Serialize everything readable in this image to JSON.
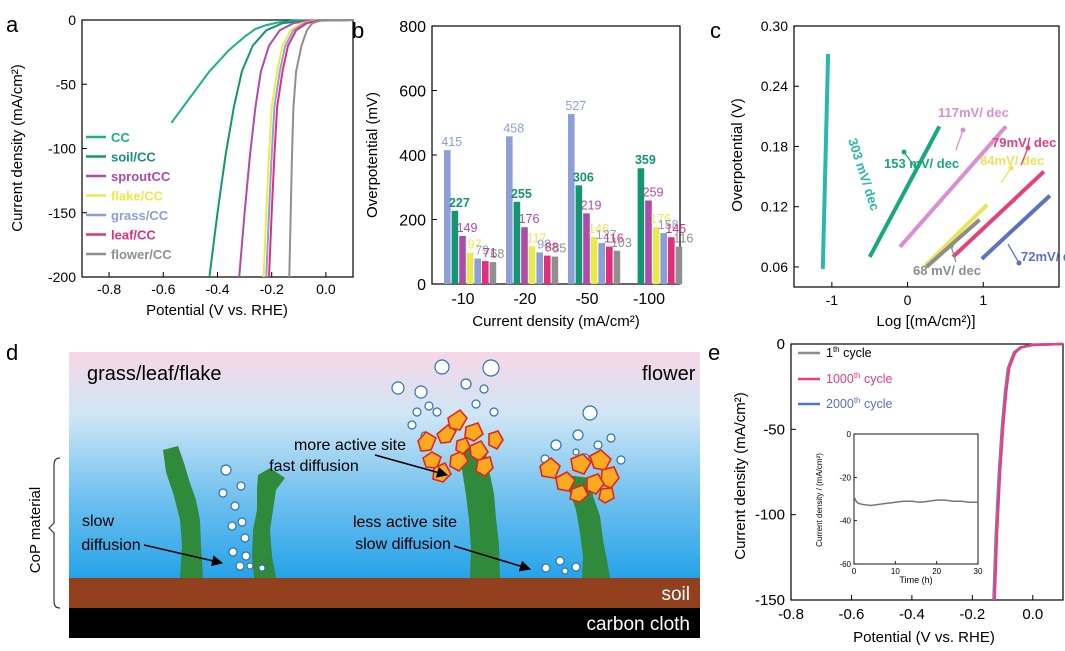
{
  "panel_labels": {
    "a": "a",
    "b": "b",
    "c": "c",
    "d": "d",
    "e": "e"
  },
  "colors": {
    "CC": "#1db08e",
    "soil/CC": "#139672",
    "sproutCC": "#b14aa8",
    "flake/CC": "#eaea4c",
    "grass/CC": "#8d9fd8",
    "leaf/CC": "#e0307d",
    "flower/CC": "#8f8f8f",
    "tafel_303": "#2ab7b0",
    "tafel_153": "#17a87d",
    "tafel_117": "#db8fd2",
    "tafel_84": "#e9e55a",
    "tafel_79": "#e83f7e",
    "tafel_72": "#5b73c4",
    "tafel_68": "#8d8d8d",
    "cycle_1": "#8e8e8e",
    "cycle_1000": "#ec3b82",
    "cycle_2000": "#5572c4",
    "plant": "#2f8a3c",
    "flower_fill": "#f8aa22",
    "flower_edge": "#e3261c",
    "soil": "#93401f",
    "carbon_cloth": "#000000",
    "bubble_edge": "#2b73b5"
  },
  "chart_data": [
    {
      "panel": "a",
      "type": "line",
      "xlabel": "Potential (V vs. RHE)",
      "ylabel": "Current density (mA/cm²)",
      "xlim": [
        -0.9,
        0.1
      ],
      "ylim": [
        -200,
        0
      ],
      "xticks": [
        "-0.8",
        "-0.6",
        "-0.4",
        "-0.2",
        "0.0"
      ],
      "xtick_values": [
        -0.8,
        -0.6,
        -0.4,
        -0.2,
        0.0
      ],
      "yticks": [
        "0",
        "-50",
        "-100",
        "-150",
        "-200"
      ],
      "ytick_values": [
        0,
        -50,
        -100,
        -150,
        -200
      ],
      "legend": [
        "CC",
        "soil/CC",
        "sproutCC",
        "flake/CC",
        "grass/CC",
        "leaf/CC",
        "flower/CC"
      ],
      "series": [
        {
          "name": "CC",
          "x": [
            -0.57,
            -0.5,
            -0.43,
            -0.36,
            -0.3,
            -0.26,
            -0.22,
            -0.18,
            -0.12,
            0.1
          ],
          "y": [
            -80,
            -60,
            -40,
            -24,
            -13,
            -7,
            -4,
            -2,
            -0.5,
            0
          ]
        },
        {
          "name": "soil/CC",
          "x": [
            -0.43,
            -0.4,
            -0.37,
            -0.34,
            -0.31,
            -0.27,
            -0.22,
            -0.16,
            -0.08,
            0.1
          ],
          "y": [
            -200,
            -150,
            -105,
            -68,
            -40,
            -20,
            -8,
            -2.5,
            -0.5,
            0
          ]
        },
        {
          "name": "sproutCC",
          "x": [
            -0.32,
            -0.3,
            -0.28,
            -0.26,
            -0.24,
            -0.21,
            -0.17,
            -0.12,
            -0.06,
            0.1
          ],
          "y": [
            -200,
            -150,
            -105,
            -68,
            -40,
            -20,
            -8,
            -2.5,
            -0.5,
            0
          ]
        },
        {
          "name": "flake/CC",
          "x": [
            -0.23,
            -0.22,
            -0.21,
            -0.2,
            -0.18,
            -0.16,
            -0.13,
            -0.09,
            -0.04,
            0.1
          ],
          "y": [
            -200,
            -150,
            -105,
            -68,
            -40,
            -20,
            -8,
            -2.5,
            -0.5,
            0
          ]
        },
        {
          "name": "grass/CC",
          "x": [
            -0.22,
            -0.21,
            -0.2,
            -0.19,
            -0.17,
            -0.15,
            -0.12,
            -0.08,
            -0.03,
            0.1
          ],
          "y": [
            -200,
            -150,
            -105,
            -68,
            -40,
            -20,
            -8,
            -2.5,
            -0.5,
            0
          ]
        },
        {
          "name": "leaf/CC",
          "x": [
            -0.21,
            -0.2,
            -0.19,
            -0.18,
            -0.16,
            -0.14,
            -0.11,
            -0.07,
            -0.03,
            0.1
          ],
          "y": [
            -200,
            -150,
            -105,
            -68,
            -40,
            -20,
            -8,
            -2.5,
            -0.5,
            0
          ]
        },
        {
          "name": "flower/CC",
          "x": [
            -0.135,
            -0.13,
            -0.125,
            -0.12,
            -0.11,
            -0.09,
            -0.07,
            -0.05,
            -0.02,
            0.1
          ],
          "y": [
            -200,
            -150,
            -105,
            -68,
            -40,
            -20,
            -8,
            -2.5,
            -0.5,
            0
          ]
        }
      ]
    },
    {
      "panel": "b",
      "type": "bar",
      "xlabel": "Current density (mA/cm²)",
      "ylabel": "Overpotential (mV)",
      "ylim": [
        0,
        800
      ],
      "yticks": [
        "0",
        "200",
        "400",
        "600",
        "800"
      ],
      "ytick_values": [
        0,
        200,
        400,
        600,
        800
      ],
      "categories": [
        "-10",
        "-20",
        "-50",
        "-100"
      ],
      "series": [
        {
          "name": "grass/CC",
          "values": [
            415,
            458,
            527,
            null
          ]
        },
        {
          "name": "soil/CC",
          "values": [
            227,
            255,
            306,
            359
          ]
        },
        {
          "name": "sproutCC",
          "values": [
            149,
            176,
            219,
            259
          ]
        },
        {
          "name": "flake/CC",
          "values": [
            97,
            117,
            146,
            176
          ]
        },
        {
          "name": "grass/CC",
          "values": [
            79,
            98,
            127,
            158
          ]
        },
        {
          "name": "leaf/CC",
          "values": [
            71,
            88,
            116,
            145
          ]
        },
        {
          "name": "flower/CC",
          "values": [
            68,
            85,
            103,
            116
          ]
        }
      ],
      "labels": [
        [
          "415",
          "227",
          "149",
          "97",
          "79",
          "71",
          "68"
        ],
        [
          "458",
          "255",
          "176",
          "117",
          "98",
          "88",
          "85"
        ],
        [
          "527",
          "306",
          "219",
          "146",
          "127",
          "116",
          "103"
        ],
        [
          "",
          "359",
          "259",
          "176",
          "158",
          "145",
          "116"
        ]
      ]
    },
    {
      "panel": "c",
      "type": "line",
      "xlabel": "Log [(mA/cm²)]",
      "ylabel": "Overpotential (V)",
      "xlim": [
        -1.5,
        2.0
      ],
      "ylim": [
        0.04,
        0.3
      ],
      "xticks": [
        "-1",
        "0",
        "1"
      ],
      "xtick_values": [
        -1,
        0,
        1
      ],
      "yticks": [
        "0.06",
        "0.12",
        "0.18",
        "0.24",
        "0.30"
      ],
      "ytick_values": [
        0.06,
        0.12,
        0.18,
        0.24,
        0.3
      ],
      "series": [
        {
          "name": "303 mV/ dec",
          "x": [
            -1.12,
            -1.05
          ],
          "y": [
            0.058,
            0.272
          ]
        },
        {
          "name": "153 mV/ dec",
          "x": [
            -0.5,
            0.42
          ],
          "y": [
            0.07,
            0.2
          ]
        },
        {
          "name": "117mV/ dec",
          "x": [
            -0.1,
            1.3
          ],
          "y": [
            0.08,
            0.2
          ]
        },
        {
          "name": "84mV/ dec",
          "x": [
            0.22,
            1.05
          ],
          "y": [
            0.06,
            0.122
          ]
        },
        {
          "name": "79mV/ dec",
          "x": [
            0.6,
            1.8
          ],
          "y": [
            0.07,
            0.155
          ]
        },
        {
          "name": "72mV/ dec",
          "x": [
            0.98,
            1.88
          ],
          "y": [
            0.068,
            0.131
          ]
        },
        {
          "name": "68 mV/ dec",
          "x": [
            0.25,
            0.95
          ],
          "y": [
            0.06,
            0.107
          ]
        }
      ],
      "annotations": [
        "303 mV/ dec",
        "153 mV/ dec",
        "117mV/ dec",
        "84mV/ dec",
        "79mV/ dec",
        "68 mV/ dec",
        "72mV/ dec"
      ]
    },
    {
      "panel": "e",
      "type": "line",
      "xlabel": "Potential (V vs. RHE)",
      "ylabel": "Current density (mA/cm²)",
      "xlim": [
        -0.8,
        0.1
      ],
      "ylim": [
        -150,
        0
      ],
      "xticks": [
        "-0.8",
        "-0.6",
        "-0.4",
        "-0.2",
        "0.0"
      ],
      "xtick_values": [
        -0.8,
        -0.6,
        -0.4,
        -0.2,
        0.0
      ],
      "yticks": [
        "0",
        "-50",
        "-100",
        "-150"
      ],
      "ytick_values": [
        0,
        -50,
        -100,
        -150
      ],
      "legend": [
        "1th cycle",
        "1000th cycle",
        "2000th cycle"
      ],
      "series": [
        {
          "name": "1th cycle",
          "x": [
            -0.128,
            -0.12,
            -0.11,
            -0.1,
            -0.09,
            -0.08,
            -0.06,
            -0.04,
            0.0,
            0.1
          ],
          "y": [
            -150,
            -110,
            -75,
            -48,
            -28,
            -14,
            -5,
            -2,
            -0.5,
            0
          ]
        },
        {
          "name": "1000th cycle",
          "x": [
            -0.126,
            -0.118,
            -0.108,
            -0.098,
            -0.088,
            -0.078,
            -0.058,
            -0.038,
            0.0,
            0.1
          ],
          "y": [
            -150,
            -110,
            -75,
            -48,
            -28,
            -14,
            -5,
            -2,
            -0.5,
            0
          ]
        },
        {
          "name": "2000th cycle",
          "x": [
            -0.13,
            -0.122,
            -0.112,
            -0.102,
            -0.092,
            -0.082,
            -0.062,
            -0.042,
            0.0,
            0.1
          ],
          "y": [
            -150,
            -110,
            -75,
            -48,
            -28,
            -14,
            -5,
            -2,
            -0.5,
            0
          ]
        }
      ],
      "inset": {
        "type": "line",
        "xlabel": "Time (h)",
        "ylabel": "Current density / (mA/cm²)",
        "xlim": [
          0,
          30
        ],
        "ylim": [
          -60,
          0
        ],
        "xticks": [
          "0",
          "10",
          "20",
          "30"
        ],
        "xtick_values": [
          0,
          10,
          20,
          30
        ],
        "yticks": [
          "0",
          "-20",
          "-40",
          "-60"
        ],
        "ytick_values": [
          0,
          -20,
          -40,
          -60
        ],
        "x": [
          0,
          0.5,
          1,
          2,
          4,
          6,
          8,
          10,
          12,
          14,
          16,
          18,
          20,
          22,
          24,
          26,
          28,
          30
        ],
        "y": [
          -29,
          -31,
          -32,
          -32.5,
          -33,
          -32.5,
          -32,
          -31.5,
          -31,
          -31,
          -31.5,
          -31,
          -30.5,
          -30.5,
          -31,
          -31,
          -31.5,
          -31.5
        ]
      }
    }
  ],
  "schematic": {
    "title_left": "grass/leaf/flake",
    "title_right": "flower",
    "text_more_active": "more active site",
    "text_fast_diffusion": "fast diffusion",
    "text_less_active": "less active site",
    "text_slow_diffusion_2": "slow diffusion",
    "text_slow": "slow",
    "text_diffusion": "diffusion",
    "side_label": "CoP material",
    "soil_label": "soil",
    "cloth_label": "carbon cloth"
  }
}
